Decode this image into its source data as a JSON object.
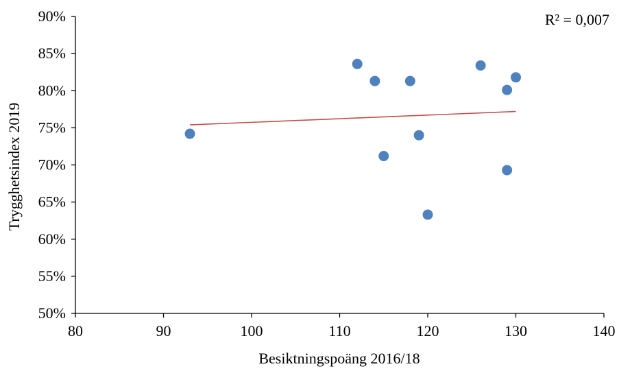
{
  "chart_data": {
    "type": "scatter",
    "title": "",
    "xlabel": "Besiktningspoäng 2016/18",
    "ylabel": "Trygghetsindex 2019",
    "xlim": [
      80,
      140
    ],
    "ylim": [
      50,
      90
    ],
    "x_ticks": [
      80,
      90,
      100,
      110,
      120,
      130,
      140
    ],
    "x_tick_labels": [
      "80",
      "90",
      "100",
      "110",
      "120",
      "130",
      "140"
    ],
    "y_ticks": [
      50,
      55,
      60,
      65,
      70,
      75,
      80,
      85,
      90
    ],
    "y_tick_labels": [
      "50%",
      "55%",
      "60%",
      "65%",
      "70%",
      "75%",
      "80%",
      "85%",
      "90%"
    ],
    "grid": false,
    "series": [
      {
        "points": [
          {
            "x": 93,
            "y": 74.2
          },
          {
            "x": 112,
            "y": 83.6
          },
          {
            "x": 114,
            "y": 81.3
          },
          {
            "x": 115,
            "y": 71.2
          },
          {
            "x": 118,
            "y": 81.3
          },
          {
            "x": 119,
            "y": 74.0
          },
          {
            "x": 120,
            "y": 63.3
          },
          {
            "x": 126,
            "y": 83.4
          },
          {
            "x": 129,
            "y": 80.1
          },
          {
            "x": 129,
            "y": 69.3
          },
          {
            "x": 130,
            "y": 81.8
          }
        ],
        "color": "#4f81bd"
      }
    ],
    "trendline": {
      "type": "linear",
      "x_range": [
        93,
        130
      ],
      "y_start": 75.4,
      "y_end": 77.2,
      "color": "#c0504d"
    },
    "annotation": "R² = 0,007"
  }
}
